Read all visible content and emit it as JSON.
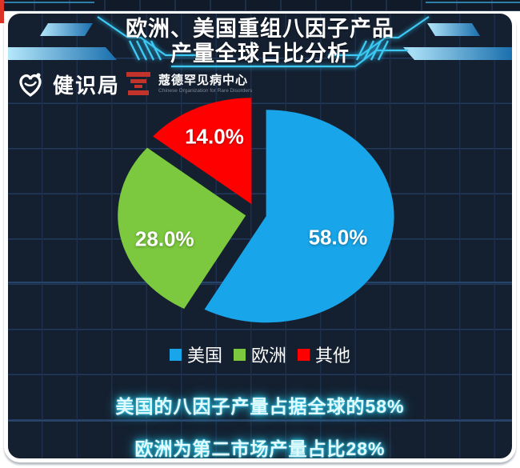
{
  "header": {
    "title_line1": "欧洲、美国重组八因子产品",
    "title_line2": "产量全球占比分析"
  },
  "branding": {
    "jianshiju_name": "健识局",
    "cord_name": "蔻德罕见病中心",
    "cord_subtitle": "Chinese Organization for Rare Disorders"
  },
  "chart_data": {
    "type": "pie",
    "labels": [
      "美国",
      "欧洲",
      "其他"
    ],
    "values": [
      58.0,
      28.0,
      14.0
    ],
    "value_labels": [
      "58.0%",
      "28.0%",
      "14.0%"
    ],
    "colors": [
      "#18a5e9",
      "#7cc83e",
      "#fe0000"
    ],
    "title": "欧洲、美国重组八因子产品产量全球占比分析",
    "legend_position": "bottom",
    "start_angle": "12-oclock-clockwise",
    "exploded": true
  },
  "captions": {
    "line1": "美国的八因子产量占据全球的58%",
    "line2": "欧洲为第二市场产量占比28%"
  },
  "colors": {
    "card_background": "#141f2f",
    "grid_line": "#1d2f4c",
    "banner_cyan": "#3fc9f5",
    "caption_glow": "#27c7ea",
    "frame_white": "#ffffff",
    "red_corner_accent": "#dd3327"
  }
}
